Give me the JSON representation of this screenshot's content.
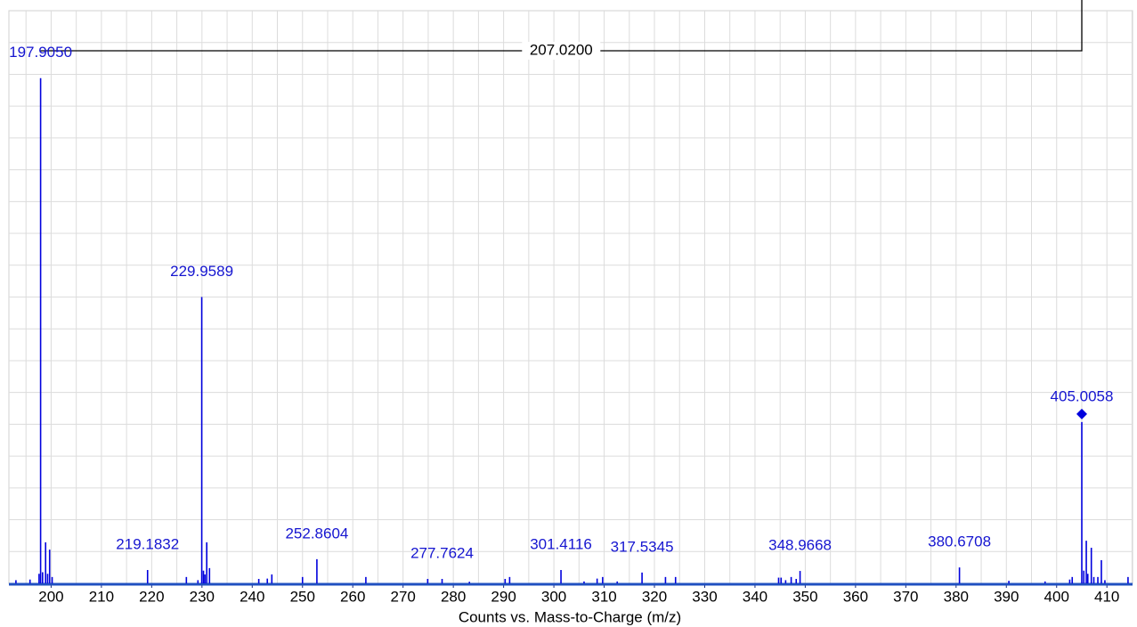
{
  "chart_data": {
    "type": "spectrum",
    "x_label": "Counts vs. Mass-to-Charge (m/z)",
    "xlim": [
      191.6,
      415.1
    ],
    "xticks": [
      200,
      210,
      220,
      230,
      240,
      250,
      260,
      270,
      280,
      290,
      300,
      310,
      320,
      330,
      340,
      350,
      360,
      370,
      380,
      390,
      400,
      410
    ],
    "ylim": [
      0,
      18
    ],
    "grid": true,
    "color": "#0000dd",
    "label_color": "#1515d0",
    "x": [
      193.0,
      195.8,
      197.6,
      197.905,
      198.3,
      198.9,
      199.3,
      199.7,
      200.2,
      219.1832,
      226.9,
      229.2,
      229.9589,
      230.3,
      230.6,
      230.95,
      231.5,
      241.3,
      243.0,
      243.9,
      250.0,
      252.8604,
      262.6,
      274.9,
      277.7624,
      283.2,
      290.3,
      291.2,
      301.4116,
      306.0,
      308.6,
      309.7,
      312.6,
      317.5345,
      322.2,
      324.2,
      344.7,
      345.2,
      346.1,
      347.2,
      348.2,
      348.9668,
      380.6708,
      390.5,
      397.7,
      402.6,
      403.1,
      405.0058,
      405.4,
      405.9,
      406.2,
      406.9,
      407.4,
      408.2,
      408.9,
      409.6,
      414.2
    ],
    "values": [
      0.1,
      0.12,
      0.3,
      15.88,
      0.35,
      1.29,
      0.3,
      1.06,
      0.2,
      0.42,
      0.2,
      0.1,
      9.0,
      0.4,
      0.28,
      1.29,
      0.48,
      0.14,
      0.15,
      0.28,
      0.2,
      0.76,
      0.2,
      0.14,
      0.14,
      0.05,
      0.14,
      0.2,
      0.42,
      0.06,
      0.15,
      0.2,
      0.06,
      0.34,
      0.2,
      0.2,
      0.18,
      0.18,
      0.1,
      0.2,
      0.14,
      0.39,
      0.5,
      0.08,
      0.06,
      0.12,
      0.2,
      5.07,
      0.4,
      1.34,
      0.3,
      1.12,
      0.2,
      0.2,
      0.73,
      0.1,
      0.2
    ],
    "labels": [
      null,
      null,
      null,
      "197.9050",
      null,
      null,
      null,
      null,
      null,
      "219.1832",
      null,
      null,
      "229.9589",
      null,
      null,
      null,
      null,
      null,
      null,
      null,
      null,
      "252.8604",
      null,
      null,
      "277.7624",
      null,
      null,
      null,
      "301.4116",
      null,
      null,
      null,
      null,
      "317.5345",
      null,
      null,
      null,
      null,
      null,
      null,
      null,
      "348.9668",
      "380.6708",
      null,
      null,
      null,
      null,
      "405.0058",
      null,
      null,
      null,
      null,
      null,
      null,
      null,
      null,
      null
    ],
    "precursor": 405.0058,
    "bracket": {
      "label": "207.0200",
      "from": 197.905,
      "to": 405.0058
    }
  }
}
